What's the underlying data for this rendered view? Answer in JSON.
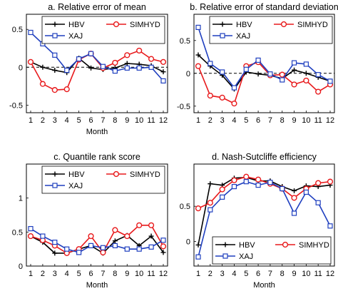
{
  "colors": {
    "HBV": "#000000",
    "SIMHYD": "#e8191b",
    "XAJ": "#1f3fbf",
    "zero_line": "#000000"
  },
  "chart_data": [
    {
      "type": "line",
      "title": "a. Relative error of mean",
      "xlabel": "Month",
      "ylabel": "",
      "categories": [
        "1",
        "2",
        "3",
        "4",
        "5",
        "6",
        "7",
        "8",
        "9",
        "10",
        "11",
        "12"
      ],
      "ylim": [
        -0.6,
        0.7
      ],
      "yticks": [
        "-0.5",
        "0",
        "0.5"
      ],
      "ytick_values": [
        -0.5,
        0,
        0.5
      ],
      "zero_line": true,
      "legend_layout": "row2",
      "series": [
        {
          "name": "HBV",
          "marker": "plus",
          "values": [
            0.07,
            0.0,
            -0.04,
            -0.07,
            0.12,
            -0.01,
            -0.03,
            -0.01,
            0.05,
            0.04,
            0.02,
            -0.06
          ]
        },
        {
          "name": "SIMHYD",
          "marker": "circle",
          "values": [
            0.07,
            -0.22,
            -0.3,
            -0.29,
            0.1,
            0.18,
            -0.01,
            0.06,
            0.16,
            0.22,
            0.11,
            0.07
          ]
        },
        {
          "name": "XAJ",
          "marker": "square",
          "values": [
            0.46,
            0.31,
            0.16,
            -0.04,
            0.11,
            0.18,
            0.01,
            -0.05,
            -0.01,
            -0.01,
            0.0,
            -0.18
          ]
        }
      ]
    },
    {
      "type": "line",
      "title": "b. Relative error of standard deviation",
      "xlabel": "",
      "ylabel": "",
      "categories": [
        "1",
        "2",
        "3",
        "4",
        "5",
        "6",
        "7",
        "8",
        "9",
        "10",
        "11",
        "12"
      ],
      "ylim": [
        -0.6,
        0.9
      ],
      "yticks": [
        "-0.5",
        "0",
        "0.5"
      ],
      "ytick_values": [
        -0.5,
        0,
        0.5
      ],
      "zero_line": true,
      "legend_layout": "row2",
      "series": [
        {
          "name": "HBV",
          "marker": "plus",
          "values": [
            0.28,
            0.11,
            -0.03,
            -0.24,
            0.02,
            -0.01,
            -0.03,
            -0.08,
            0.05,
            0.0,
            -0.06,
            -0.12
          ]
        },
        {
          "name": "SIMHYD",
          "marker": "circle",
          "values": [
            0.11,
            -0.34,
            -0.37,
            -0.46,
            0.11,
            0.17,
            -0.03,
            -0.02,
            -0.17,
            -0.11,
            -0.28,
            -0.17
          ]
        },
        {
          "name": "XAJ",
          "marker": "square",
          "values": [
            0.7,
            0.15,
            0.02,
            -0.22,
            0.06,
            0.2,
            -0.01,
            -0.1,
            0.16,
            0.14,
            -0.02,
            -0.12
          ]
        }
      ]
    },
    {
      "type": "line",
      "title": "c. Quantile rank score",
      "xlabel": "Month",
      "ylabel": "",
      "categories": [
        "1",
        "2",
        "3",
        "4",
        "5",
        "6",
        "7",
        "8",
        "9",
        "10",
        "11",
        "12"
      ],
      "ylim": [
        0,
        1.5
      ],
      "yticks": [
        "0",
        "0.5",
        "1"
      ],
      "ytick_values": [
        0,
        0.5,
        1
      ],
      "zero_line": false,
      "legend_layout": "row2",
      "series": [
        {
          "name": "HBV",
          "marker": "plus",
          "values": [
            0.44,
            0.35,
            0.19,
            0.19,
            0.25,
            0.3,
            0.19,
            0.37,
            0.45,
            0.3,
            0.44,
            0.2
          ]
        },
        {
          "name": "SIMHYD",
          "marker": "circle",
          "values": [
            0.44,
            0.38,
            0.3,
            0.19,
            0.25,
            0.44,
            0.2,
            0.53,
            0.44,
            0.6,
            0.6,
            0.29
          ]
        },
        {
          "name": "XAJ",
          "marker": "square",
          "values": [
            0.55,
            0.44,
            0.35,
            0.25,
            0.2,
            0.3,
            0.27,
            0.3,
            0.25,
            0.25,
            0.28,
            0.38
          ]
        }
      ]
    },
    {
      "type": "line",
      "title": "d. Nash-Sutcliffe efficiency",
      "xlabel": "Month",
      "ylabel": "",
      "categories": [
        "1",
        "2",
        "3",
        "4",
        "5",
        "6",
        "7",
        "8",
        "9",
        "10",
        "11",
        "12"
      ],
      "ylim": [
        -0.35,
        1.1
      ],
      "yticks": [
        "0",
        "0.5"
      ],
      "ytick_values": [
        0,
        0.5
      ],
      "zero_line": false,
      "legend_layout": "row1bottom",
      "series": [
        {
          "name": "HBV",
          "marker": "plus",
          "values": [
            -0.05,
            0.82,
            0.8,
            0.9,
            0.91,
            0.86,
            0.86,
            0.78,
            0.72,
            0.79,
            0.78,
            0.8
          ]
        },
        {
          "name": "SIMHYD",
          "marker": "circle",
          "values": [
            0.47,
            0.55,
            0.74,
            0.87,
            0.92,
            0.88,
            0.82,
            0.75,
            0.62,
            0.75,
            0.83,
            0.85
          ]
        },
        {
          "name": "XAJ",
          "marker": "square",
          "values": [
            -0.22,
            0.45,
            0.63,
            0.78,
            0.85,
            0.8,
            0.84,
            0.75,
            0.4,
            0.7,
            0.55,
            0.22
          ]
        }
      ]
    }
  ]
}
